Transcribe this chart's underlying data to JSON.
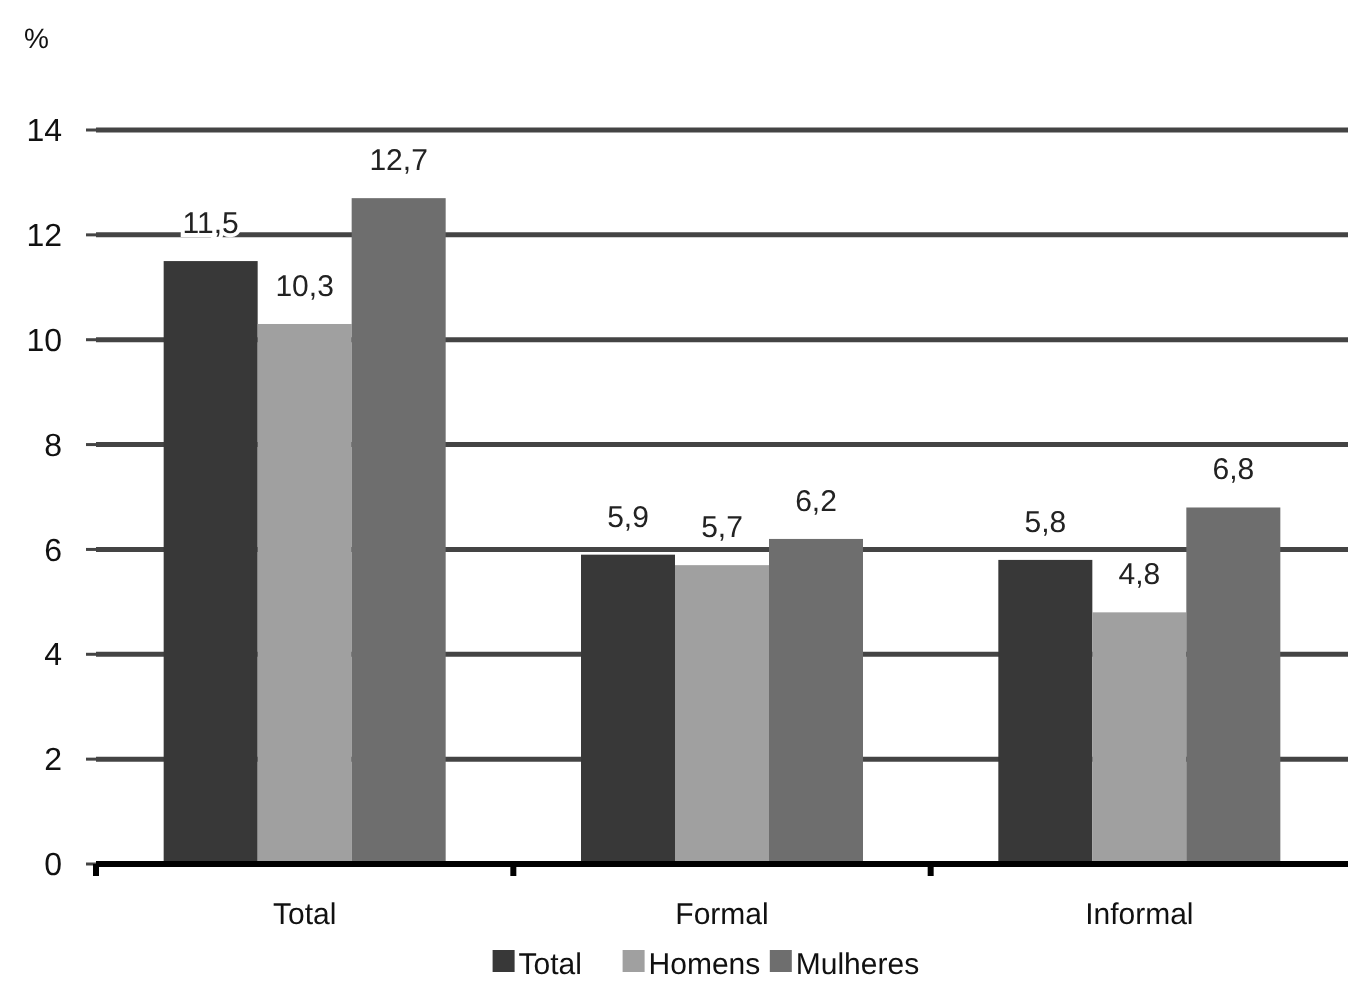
{
  "chart_data": {
    "type": "bar",
    "ylabel": "%",
    "categories": [
      "Total",
      "Formal",
      "Informal"
    ],
    "series": [
      {
        "name": "Total",
        "color": "#383838",
        "values": [
          11.5,
          5.9,
          5.8
        ],
        "value_labels": [
          "11,5",
          "5,9",
          "5,8"
        ]
      },
      {
        "name": "Homens",
        "color": "#a0a0a0",
        "values": [
          10.3,
          5.7,
          4.8
        ],
        "value_labels": [
          "10,3",
          "5,7",
          "4,8"
        ]
      },
      {
        "name": "Mulheres",
        "color": "#6e6e6e",
        "values": [
          12.7,
          6.2,
          6.8
        ],
        "value_labels": [
          "12,7",
          "6,2",
          "6,8"
        ]
      }
    ],
    "ylim": [
      0,
      14
    ],
    "yticks": [
      0,
      2,
      4,
      6,
      8,
      10,
      12,
      14
    ],
    "grid": "y",
    "legend": "bottom"
  }
}
